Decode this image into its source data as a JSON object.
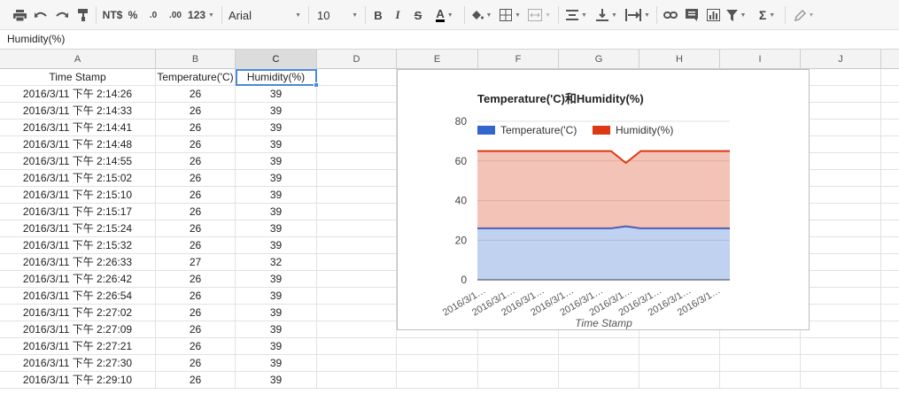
{
  "toolbar": {
    "currency": "NT$",
    "percent": "%",
    "decimal_decrease": ".0",
    "decimal_increase": ".00",
    "number_format": "123",
    "font_family": "Arial",
    "font_size": "10",
    "bold": "B",
    "italic": "I",
    "strike": "S",
    "text_color": "A",
    "sum": "Σ"
  },
  "formula_bar": {
    "value": "Humidity(%)"
  },
  "columns": [
    "A",
    "B",
    "C",
    "D",
    "E",
    "F",
    "G",
    "H",
    "I",
    "J"
  ],
  "table": {
    "headers": [
      "Time Stamp",
      "Temperature('C)",
      "Humidity(%)"
    ],
    "rows": [
      [
        "2016/3/11 下午 2:14:26",
        "26",
        "39"
      ],
      [
        "2016/3/11 下午 2:14:33",
        "26",
        "39"
      ],
      [
        "2016/3/11 下午 2:14:41",
        "26",
        "39"
      ],
      [
        "2016/3/11 下午 2:14:48",
        "26",
        "39"
      ],
      [
        "2016/3/11 下午 2:14:55",
        "26",
        "39"
      ],
      [
        "2016/3/11 下午 2:15:02",
        "26",
        "39"
      ],
      [
        "2016/3/11 下午 2:15:10",
        "26",
        "39"
      ],
      [
        "2016/3/11 下午 2:15:17",
        "26",
        "39"
      ],
      [
        "2016/3/11 下午 2:15:24",
        "26",
        "39"
      ],
      [
        "2016/3/11 下午 2:15:32",
        "26",
        "39"
      ],
      [
        "2016/3/11 下午 2:26:33",
        "27",
        "32"
      ],
      [
        "2016/3/11 下午 2:26:42",
        "26",
        "39"
      ],
      [
        "2016/3/11 下午 2:26:54",
        "26",
        "39"
      ],
      [
        "2016/3/11 下午 2:27:02",
        "26",
        "39"
      ],
      [
        "2016/3/11 下午 2:27:09",
        "26",
        "39"
      ],
      [
        "2016/3/11 下午 2:27:21",
        "26",
        "39"
      ],
      [
        "2016/3/11 下午 2:27:30",
        "26",
        "39"
      ],
      [
        "2016/3/11 下午 2:29:10",
        "26",
        "39"
      ]
    ]
  },
  "chart_data": {
    "type": "area",
    "stacked": true,
    "title": "Temperature('C)和Humidity(%)",
    "xlabel": "Time Stamp",
    "ylabel": "",
    "ylim": [
      0,
      80
    ],
    "yticks": [
      "0",
      "20",
      "40",
      "60",
      "80"
    ],
    "x_tick_labels": [
      "2016/3/1…",
      "2016/3/1…",
      "2016/3/1…",
      "2016/3/1…",
      "2016/3/1…",
      "2016/3/1…",
      "2016/3/1…",
      "2016/3/1…",
      "2016/3/1…"
    ],
    "legend_position": "top",
    "x": [
      "2016/3/11 下午 2:14:26",
      "2016/3/11 下午 2:14:33",
      "2016/3/11 下午 2:14:41",
      "2016/3/11 下午 2:14:48",
      "2016/3/11 下午 2:14:55",
      "2016/3/11 下午 2:15:02",
      "2016/3/11 下午 2:15:10",
      "2016/3/11 下午 2:15:17",
      "2016/3/11 下午 2:15:24",
      "2016/3/11 下午 2:15:32",
      "2016/3/11 下午 2:26:33",
      "2016/3/11 下午 2:26:42",
      "2016/3/11 下午 2:26:54",
      "2016/3/11 下午 2:27:02",
      "2016/3/11 下午 2:27:09",
      "2016/3/11 下午 2:27:21",
      "2016/3/11 下午 2:27:30",
      "2016/3/11 下午 2:29:10"
    ],
    "series": [
      {
        "name": "Temperature('C)",
        "color": "#3366cc",
        "values": [
          26,
          26,
          26,
          26,
          26,
          26,
          26,
          26,
          26,
          26,
          27,
          26,
          26,
          26,
          26,
          26,
          26,
          26
        ]
      },
      {
        "name": "Humidity(%)",
        "color": "#dc3912",
        "values": [
          39,
          39,
          39,
          39,
          39,
          39,
          39,
          39,
          39,
          39,
          32,
          39,
          39,
          39,
          39,
          39,
          39,
          39
        ]
      }
    ]
  }
}
